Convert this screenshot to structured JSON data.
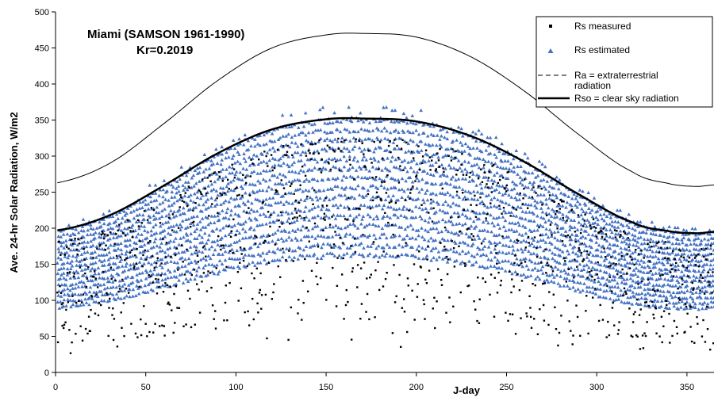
{
  "chart_data": {
    "type": "scatter",
    "title": "",
    "xlabel": "J-day",
    "ylabel": "Ave. 24-hr Solar Radiation, W/m2",
    "xlim": [
      0,
      365
    ],
    "ylim": [
      0,
      500
    ],
    "xticks": [
      "0",
      "50",
      "100",
      "150",
      "200",
      "250",
      "300",
      "350"
    ],
    "yticks": [
      "0",
      "50",
      "100",
      "150",
      "200",
      "250",
      "300",
      "350",
      "400",
      "450",
      "500"
    ],
    "grid": false,
    "legend_position": "top-right",
    "annotations": [
      "Miami (SAMSON 1961-1990)",
      "Kr=0.2019"
    ],
    "legend": {
      "rs_measured": "Rs measured",
      "rs_estimated": "Rs estimated",
      "ra_line1": "Ra = extraterrestrial",
      "ra_line2": "radiation",
      "rso": "Rso = clear sky radiation"
    },
    "colors": {
      "measured": "#000000",
      "estimated": "#4472c4",
      "lines": "#000000"
    },
    "series": [
      {
        "name": "Ra = extraterrestrial radiation",
        "kind": "line",
        "style": "thin",
        "x": [
          1,
          30,
          60,
          90,
          120,
          150,
          172,
          200,
          230,
          260,
          290,
          320,
          340,
          355,
          365
        ],
        "y": [
          263,
          290,
          345,
          405,
          450,
          468,
          470,
          465,
          438,
          390,
          330,
          278,
          262,
          258,
          260
        ]
      },
      {
        "name": "Rso = clear sky radiation",
        "kind": "line",
        "style": "thick",
        "x": [
          1,
          30,
          60,
          90,
          120,
          150,
          172,
          200,
          230,
          260,
          290,
          320,
          340,
          355,
          365
        ],
        "y": [
          197,
          218,
          259,
          304,
          337,
          351,
          352,
          348,
          328,
          292,
          247,
          208,
          196,
          193,
          195
        ]
      },
      {
        "name": "Rs measured",
        "kind": "scatter",
        "marker": "square",
        "x": [
          5,
          12,
          20,
          35,
          48,
          60,
          75,
          90,
          105,
          120,
          135,
          150,
          165,
          180,
          195,
          210,
          225,
          240,
          255,
          270,
          285,
          300,
          315,
          330,
          345,
          360
        ],
        "y": [
          150,
          120,
          175,
          90,
          200,
          140,
          230,
          105,
          270,
          180,
          300,
          240,
          320,
          250,
          300,
          190,
          290,
          230,
          260,
          200,
          240,
          160,
          200,
          120,
          170,
          100
        ]
      },
      {
        "name": "Rs estimated",
        "kind": "scatter",
        "marker": "triangle",
        "x": [
          3,
          15,
          30,
          45,
          60,
          80,
          100,
          115,
          130,
          145,
          160,
          175,
          190,
          205,
          220,
          235,
          250,
          265,
          280,
          295,
          310,
          325,
          340,
          355
        ],
        "y": [
          160,
          140,
          190,
          170,
          210,
          230,
          260,
          240,
          300,
          270,
          290,
          260,
          250,
          230,
          240,
          210,
          220,
          190,
          200,
          170,
          180,
          150,
          160,
          140
        ]
      }
    ]
  }
}
